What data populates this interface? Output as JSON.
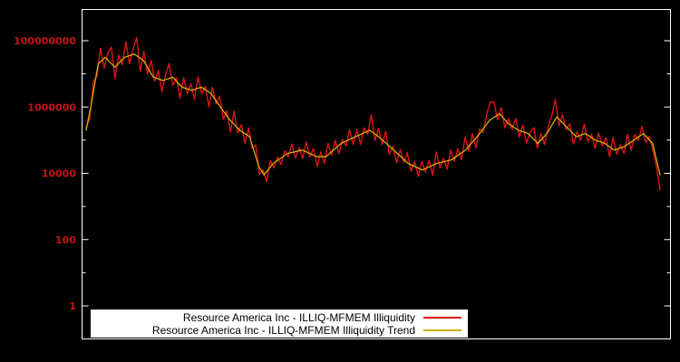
{
  "colors": {
    "background": "#000000",
    "plot_border": "#ffffff",
    "axis_label_color": "#c41414",
    "legend_background": "#ffffff",
    "legend_text": "#000000"
  },
  "chart_data": {
    "type": "line",
    "title": "",
    "x_axis": {
      "label": "",
      "tick_labels": []
    },
    "y_axis": {
      "label": "",
      "scale": "log",
      "tick_labels": [
        "100000000",
        "1000000",
        "10000",
        "100",
        "1"
      ],
      "tick_log10_values": [
        8,
        6,
        4,
        2,
        0
      ],
      "minor_tick_log10_values": [
        7,
        5,
        3,
        1
      ],
      "range_log10": [
        -1,
        9
      ]
    },
    "legend": {
      "position": "bottom-center",
      "background": "#ffffff",
      "text_color": "#000000"
    },
    "series": [
      {
        "name": "Resource America Inc - ILLIQ-MFMEM Illiquidity",
        "color": "#dd1414",
        "style": "noisy",
        "n_points": 160,
        "y_log10_offsets_from_trend": [
          0.1,
          -0.2,
          0.3,
          -0.15,
          0.4,
          -0.3,
          0.2,
          0.5,
          -0.35,
          0.25,
          -0.15,
          0.45,
          -0.25,
          0.15,
          0.55,
          -0.4,
          0.3,
          -0.2,
          0.4,
          -0.1,
          0.25,
          -0.35,
          0.15,
          0.45,
          -0.25,
          0.1,
          -0.4,
          0.3,
          -0.15,
          0.2,
          -0.3,
          0.35,
          -0.2,
          0.1,
          -0.45,
          0.25,
          -0.1,
          0.3,
          -0.25,
          0.15,
          -0.35,
          0.4,
          -0.15,
          0.2,
          -0.3,
          0.25,
          -0.1,
          0.35,
          -0.2,
          0.1,
          -0.3,
          0.2,
          -0.15,
          0.1,
          -0.2,
          0.15,
          -0.1,
          0.25,
          -0.2,
          0.1,
          -0.25,
          0.3,
          -0.1,
          0.2,
          -0.3,
          0.15,
          -0.2,
          0.35,
          -0.1,
          0.25,
          -0.25,
          0.1,
          -0.15,
          0.3,
          -0.2,
          0.2,
          -0.3,
          0.15,
          -0.1,
          0.5,
          -0.2,
          0.25,
          -0.15,
          0.35,
          -0.25,
          0.1,
          -0.3,
          0.2,
          -0.1,
          0.3,
          -0.2,
          0.15,
          -0.25,
          0.25,
          -0.1,
          0.2,
          -0.3,
          0.35,
          -0.15,
          0.1,
          -0.25,
          0.3,
          -0.1,
          0.2,
          -0.2,
          0.4,
          -0.15,
          0.25,
          -0.3,
          0.15,
          -0.1,
          0.3,
          0.55,
          0.45,
          -0.15,
          0.25,
          -0.25,
          0.15,
          -0.1,
          0.3,
          -0.2,
          0.2,
          -0.3,
          0.1,
          0.35,
          -0.15,
          0.2,
          -0.25,
          0.15,
          0.3,
          0.6,
          -0.2,
          0.25,
          -0.1,
          0.2,
          -0.3,
          0.15,
          -0.15,
          0.3,
          -0.2,
          0.1,
          -0.25,
          0.25,
          -0.1,
          0.2,
          -0.3,
          0.35,
          -0.15,
          0.1,
          -0.2,
          0.3,
          -0.25,
          0.15,
          -0.1,
          0.25,
          -0.2,
          0.1,
          -0.15,
          -0.2,
          -0.45
        ]
      },
      {
        "name": "Resource America Inc - ILLIQ-MFMEM Illiquidity Trend",
        "color": "#cdb000",
        "style": "smooth",
        "x_fraction": [
          0.0,
          0.008,
          0.021,
          0.033,
          0.05,
          0.067,
          0.084,
          0.1,
          0.117,
          0.134,
          0.151,
          0.167,
          0.184,
          0.201,
          0.218,
          0.234,
          0.251,
          0.268,
          0.285,
          0.301,
          0.31,
          0.326,
          0.351,
          0.377,
          0.402,
          0.418,
          0.444,
          0.469,
          0.494,
          0.51,
          0.536,
          0.561,
          0.586,
          0.611,
          0.636,
          0.661,
          0.686,
          0.703,
          0.72,
          0.736,
          0.753,
          0.77,
          0.787,
          0.803,
          0.82,
          0.837,
          0.854,
          0.87,
          0.887,
          0.904,
          0.92,
          0.937,
          0.954,
          0.971,
          0.987,
          1.0
        ],
        "y_log10": [
          5.3,
          6.0,
          7.3,
          7.5,
          7.2,
          7.5,
          7.6,
          7.4,
          6.9,
          6.8,
          6.9,
          6.6,
          6.5,
          6.6,
          6.4,
          6.0,
          5.6,
          5.3,
          5.1,
          4.2,
          3.95,
          4.3,
          4.6,
          4.7,
          4.5,
          4.5,
          4.9,
          5.1,
          5.3,
          5.1,
          4.7,
          4.3,
          4.1,
          4.3,
          4.4,
          4.7,
          5.2,
          5.6,
          5.8,
          5.5,
          5.3,
          5.2,
          4.9,
          5.2,
          5.7,
          5.4,
          5.1,
          5.2,
          5.0,
          4.9,
          4.7,
          4.8,
          5.0,
          5.2,
          4.9,
          3.95
        ]
      }
    ]
  }
}
